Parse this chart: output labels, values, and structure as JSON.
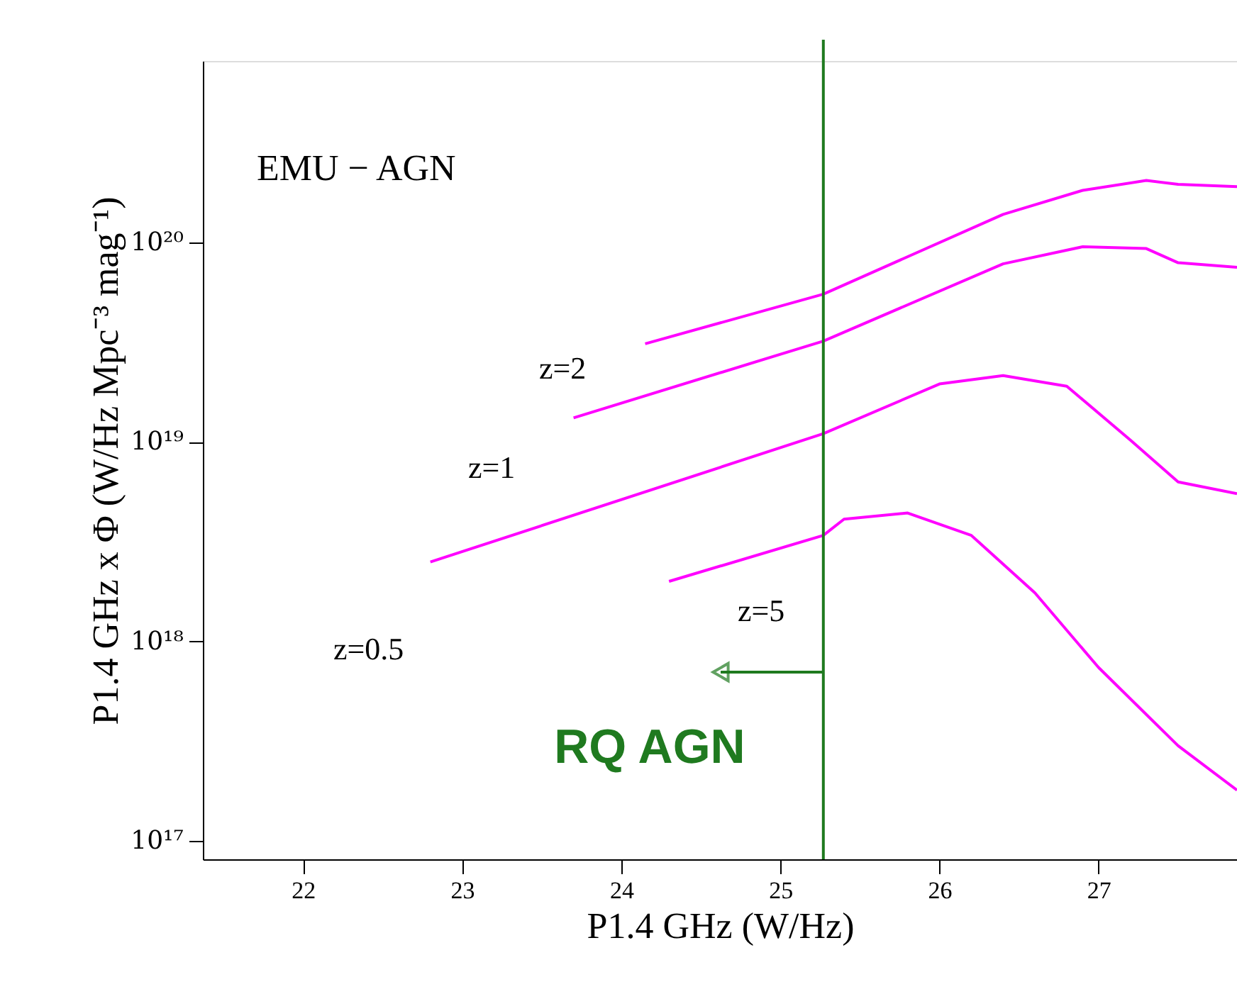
{
  "chart_data": {
    "type": "line",
    "xlabel": "P1.4 GHz (W/Hz)",
    "ylabel": "P1.4 GHz x Φ (W/Hz Mpc⁻³ mag⁻¹)",
    "log": "y",
    "grid": false,
    "legend": false,
    "marker": "none",
    "line_style": "solid",
    "xlim": [
      21.37,
      27.87
    ],
    "ylim": [
      8.1e+16,
      8.1e+20
    ],
    "xticks": [
      22,
      23,
      24,
      25,
      26,
      27
    ],
    "yticks": [
      {
        "value": 1e+17,
        "label": "10¹⁷"
      },
      {
        "value": 1e+18,
        "label": "10¹⁸"
      },
      {
        "value": 1e+19,
        "label": "10¹⁹"
      },
      {
        "value": 1e+20,
        "label": "10²⁰"
      }
    ],
    "series": [
      {
        "color": "#ff00ff",
        "x": [
          24.15,
          25.27,
          26.4,
          26.9,
          27.3,
          27.5,
          27.87
        ],
        "values": [
          3.1e+19,
          5.5e+19,
          1.38e+20,
          1.82e+20,
          2.04e+20,
          1.95e+20,
          1.9e+20
        ]
      },
      {
        "color": "#ff00ff",
        "x": [
          23.7,
          25.27,
          26.4,
          26.9,
          27.3,
          27.5,
          27.87
        ],
        "values": [
          1.32e+19,
          3.2e+19,
          7.8e+19,
          9.5e+19,
          9.3e+19,
          7.9e+19,
          7.5e+19
        ]
      },
      {
        "color": "#ff00ff",
        "x": [
          22.8,
          25.27,
          26.0,
          26.4,
          26.8,
          27.2,
          27.5,
          27.87
        ],
        "values": [
          2.5e+18,
          1.1e+19,
          1.95e+19,
          2.15e+19,
          1.9e+19,
          1.02e+19,
          6.3e+18,
          5.5e+18
        ]
      },
      {
        "color": "#ff00ff",
        "x": [
          24.3,
          25.27,
          25.4,
          25.8,
          26.2,
          26.6,
          27.0,
          27.5,
          27.87
        ],
        "values": [
          2e+18,
          3.4e+18,
          4.1e+18,
          4.4e+18,
          3.4e+18,
          1.75e+18,
          7.4e+17,
          3e+17,
          1.8e+17
        ]
      }
    ],
    "ref_lines": [
      {
        "axis": "x",
        "value": 25.27,
        "label": "RQ AGN",
        "color": "#1f7a1f"
      }
    ],
    "annotations": [
      "EMU − AGN",
      "z=2",
      "z=1",
      "z=0.5",
      "z=5"
    ]
  }
}
